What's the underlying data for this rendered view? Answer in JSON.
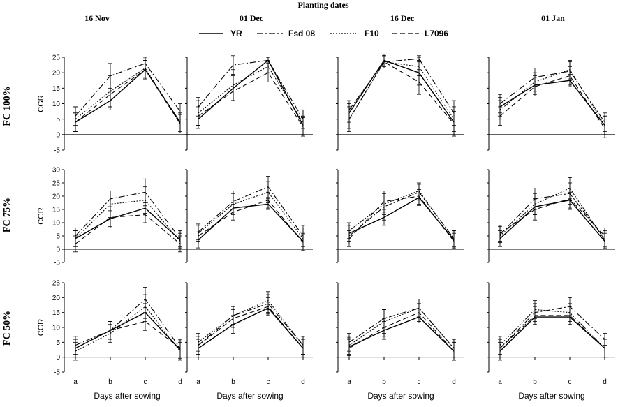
{
  "figure_title": "Planting dates",
  "legend_entries": [
    "YR",
    "Fsd 08",
    "F10",
    "L7096"
  ],
  "column_titles": [
    "16 Nov",
    "01 Dec",
    "16 Dec",
    "01 Jan"
  ],
  "row_labels": [
    "FC 100%",
    "FC 75%",
    "FC 50%"
  ],
  "ylabel": "CGR",
  "xlabel": "Days after sowing",
  "categories": [
    "a",
    "b",
    "c",
    "d"
  ],
  "chart_data": [
    {
      "type": "line",
      "row": "FC 100%",
      "column": "16 Nov",
      "ylim": [
        -5,
        25
      ],
      "yticks": [
        -5,
        0,
        5,
        10,
        15,
        20,
        25
      ],
      "categories": [
        "a",
        "b",
        "c",
        "d"
      ],
      "series": [
        {
          "name": "YR",
          "values": [
            4,
            11,
            21,
            4
          ],
          "errors": [
            3,
            3,
            3,
            3
          ]
        },
        {
          "name": "Fsd 08",
          "values": [
            6,
            19,
            23,
            7.5
          ],
          "errors": [
            3,
            4,
            2,
            2.5
          ]
        },
        {
          "name": "F10",
          "values": [
            5,
            14,
            21.5,
            3.5
          ],
          "errors": [
            4,
            5,
            3,
            3
          ]
        },
        {
          "name": "L7096",
          "values": [
            4,
            13,
            21,
            3.5
          ],
          "errors": [
            3,
            4,
            3,
            3
          ]
        }
      ]
    },
    {
      "type": "line",
      "row": "FC 100%",
      "column": "01 Dec",
      "ylim": [
        -5,
        25
      ],
      "yticks": [
        -5,
        0,
        5,
        10,
        15,
        20,
        25
      ],
      "categories": [
        "a",
        "b",
        "c",
        "d"
      ],
      "series": [
        {
          "name": "YR",
          "values": [
            5,
            15,
            24,
            3
          ],
          "errors": [
            3,
            4,
            1,
            3
          ]
        },
        {
          "name": "Fsd 08",
          "values": [
            9,
            22.5,
            24,
            5
          ],
          "errors": [
            3,
            3,
            1,
            3
          ]
        },
        {
          "name": "F10",
          "values": [
            7,
            16,
            22,
            4
          ],
          "errors": [
            4,
            5,
            2,
            4
          ]
        },
        {
          "name": "L7096",
          "values": [
            6,
            14,
            20,
            2.5
          ],
          "errors": [
            3,
            3,
            3,
            3
          ]
        }
      ]
    },
    {
      "type": "line",
      "row": "FC 100%",
      "column": "16 Dec",
      "ylim": [
        -5,
        25
      ],
      "yticks": [
        -5,
        0,
        5,
        10,
        15,
        20,
        25
      ],
      "categories": [
        "a",
        "b",
        "c",
        "d"
      ],
      "series": [
        {
          "name": "YR",
          "values": [
            7,
            24,
            20,
            4
          ],
          "errors": [
            3,
            2,
            4,
            4
          ]
        },
        {
          "name": "Fsd 08",
          "values": [
            8,
            23.5,
            24.5,
            7
          ],
          "errors": [
            3,
            2,
            1,
            4
          ]
        },
        {
          "name": "F10",
          "values": [
            5,
            23.5,
            22,
            5
          ],
          "errors": [
            4,
            2,
            3,
            4
          ]
        },
        {
          "name": "L7096",
          "values": [
            5,
            23.5,
            17,
            3.5
          ],
          "errors": [
            3,
            2,
            4,
            4
          ]
        }
      ]
    },
    {
      "type": "line",
      "row": "FC 100%",
      "column": "01 Jan",
      "ylim": [
        -5,
        25
      ],
      "yticks": [
        -5,
        0,
        5,
        10,
        15,
        20,
        25
      ],
      "categories": [
        "a",
        "b",
        "c",
        "d"
      ],
      "series": [
        {
          "name": "YR",
          "values": [
            9,
            16,
            17.5,
            3
          ],
          "errors": [
            3,
            3,
            2,
            3
          ]
        },
        {
          "name": "Fsd 08",
          "values": [
            10,
            18.5,
            20.5,
            4
          ],
          "errors": [
            3,
            3,
            3,
            3
          ]
        },
        {
          "name": "F10",
          "values": [
            8,
            17,
            21,
            3
          ],
          "errors": [
            3,
            3,
            3,
            3
          ]
        },
        {
          "name": "L7096",
          "values": [
            6,
            15.5,
            19,
            2
          ],
          "errors": [
            3,
            3,
            3,
            3
          ]
        }
      ]
    },
    {
      "type": "line",
      "row": "FC 75%",
      "column": "16 Nov",
      "ylim": [
        -5,
        30
      ],
      "yticks": [
        -5,
        0,
        5,
        10,
        15,
        20,
        25,
        30
      ],
      "categories": [
        "a",
        "b",
        "c",
        "d"
      ],
      "series": [
        {
          "name": "YR",
          "values": [
            4,
            11.5,
            15.5,
            3.5
          ],
          "errors": [
            3,
            3,
            2,
            3
          ]
        },
        {
          "name": "Fsd 08",
          "values": [
            5,
            19,
            21.5,
            4
          ],
          "errors": [
            3,
            3,
            5,
            3
          ]
        },
        {
          "name": "F10",
          "values": [
            4,
            17,
            18.5,
            3
          ],
          "errors": [
            3,
            5,
            5,
            3
          ]
        },
        {
          "name": "L7096",
          "values": [
            2,
            12,
            13,
            2
          ],
          "errors": [
            3,
            4,
            3,
            3
          ]
        }
      ]
    },
    {
      "type": "line",
      "row": "FC 75%",
      "column": "01 Dec",
      "ylim": [
        -5,
        30
      ],
      "yticks": [
        -5,
        0,
        5,
        10,
        15,
        20,
        25,
        30
      ],
      "categories": [
        "a",
        "b",
        "c",
        "d"
      ],
      "series": [
        {
          "name": "YR",
          "values": [
            3.5,
            15.5,
            17,
            3
          ],
          "errors": [
            3,
            3,
            2,
            3
          ]
        },
        {
          "name": "Fsd 08",
          "values": [
            6.5,
            18,
            23.5,
            5
          ],
          "errors": [
            3,
            4,
            4,
            4
          ]
        },
        {
          "name": "F10",
          "values": [
            6,
            17,
            21.5,
            4
          ],
          "errors": [
            3,
            4,
            4,
            4
          ]
        },
        {
          "name": "L7096",
          "values": [
            5,
            14,
            18.5,
            2.5
          ],
          "errors": [
            3,
            3,
            3,
            3
          ]
        }
      ]
    },
    {
      "type": "line",
      "row": "FC 75%",
      "column": "16 Dec",
      "ylim": [
        -5,
        30
      ],
      "yticks": [
        -5,
        0,
        5,
        10,
        15,
        20,
        25,
        30
      ],
      "categories": [
        "a",
        "b",
        "c",
        "d"
      ],
      "series": [
        {
          "name": "YR",
          "values": [
            6,
            12,
            19.5,
            3.5
          ],
          "errors": [
            3,
            3,
            3,
            3
          ]
        },
        {
          "name": "Fsd 08",
          "values": [
            5,
            16,
            21.5,
            4
          ],
          "errors": [
            3,
            5,
            3,
            3
          ]
        },
        {
          "name": "F10",
          "values": [
            7,
            17,
            22,
            4
          ],
          "errors": [
            3,
            4,
            3,
            3
          ]
        },
        {
          "name": "L7096",
          "values": [
            4,
            18,
            20,
            3
          ],
          "errors": [
            3,
            4,
            3,
            3
          ]
        }
      ]
    },
    {
      "type": "line",
      "row": "FC 75%",
      "column": "01 Jan",
      "ylim": [
        -5,
        30
      ],
      "yticks": [
        -5,
        0,
        5,
        10,
        15,
        20,
        25,
        30
      ],
      "categories": [
        "a",
        "b",
        "c",
        "d"
      ],
      "series": [
        {
          "name": "YR",
          "values": [
            4,
            16,
            18.5,
            3
          ],
          "errors": [
            3,
            3,
            3,
            3
          ]
        },
        {
          "name": "Fsd 08",
          "values": [
            5.5,
            19,
            21,
            4
          ],
          "errors": [
            3,
            4,
            4,
            3
          ]
        },
        {
          "name": "F10",
          "values": [
            5,
            17,
            23,
            3.5
          ],
          "errors": [
            3,
            4,
            4,
            3
          ]
        },
        {
          "name": "L7096",
          "values": [
            6,
            15,
            19,
            5
          ],
          "errors": [
            3,
            4,
            4,
            3
          ]
        }
      ]
    },
    {
      "type": "line",
      "row": "FC 50%",
      "column": "16 Nov",
      "ylim": [
        -5,
        25
      ],
      "yticks": [
        -5,
        0,
        5,
        10,
        15,
        20,
        25
      ],
      "categories": [
        "a",
        "b",
        "c",
        "d"
      ],
      "series": [
        {
          "name": "YR",
          "values": [
            3,
            9,
            15,
            2.5
          ],
          "errors": [
            3,
            3,
            3,
            3
          ]
        },
        {
          "name": "Fsd 08",
          "values": [
            4,
            9,
            19.5,
            3
          ],
          "errors": [
            3,
            3,
            4,
            3
          ]
        },
        {
          "name": "F10",
          "values": [
            2,
            8,
            17,
            2
          ],
          "errors": [
            3,
            3,
            4,
            3
          ]
        },
        {
          "name": "L7096",
          "values": [
            3,
            9,
            12,
            3
          ],
          "errors": [
            3,
            3,
            3,
            3
          ]
        }
      ]
    },
    {
      "type": "line",
      "row": "FC 50%",
      "column": "01 Dec",
      "ylim": [
        -5,
        25
      ],
      "yticks": [
        -5,
        0,
        5,
        10,
        15,
        20,
        25
      ],
      "categories": [
        "a",
        "b",
        "c",
        "d"
      ],
      "series": [
        {
          "name": "YR",
          "values": [
            3,
            11,
            16.5,
            3
          ],
          "errors": [
            3,
            3,
            2,
            3
          ]
        },
        {
          "name": "Fsd 08",
          "values": [
            4,
            14,
            18,
            4
          ],
          "errors": [
            3,
            3,
            3,
            3
          ]
        },
        {
          "name": "F10",
          "values": [
            5,
            14,
            19,
            4
          ],
          "errors": [
            3,
            3,
            3,
            3
          ]
        },
        {
          "name": "L7096",
          "values": [
            4,
            13,
            17,
            3
          ],
          "errors": [
            3,
            3,
            3,
            3
          ]
        }
      ]
    },
    {
      "type": "line",
      "row": "FC 50%",
      "column": "16 Dec",
      "ylim": [
        -5,
        25
      ],
      "yticks": [
        -5,
        0,
        5,
        10,
        15,
        20,
        25
      ],
      "categories": [
        "a",
        "b",
        "c",
        "d"
      ],
      "series": [
        {
          "name": "YR",
          "values": [
            3.5,
            9,
            13.5,
            2
          ],
          "errors": [
            3,
            3,
            2,
            3
          ]
        },
        {
          "name": "Fsd 08",
          "values": [
            5,
            13,
            16.5,
            3
          ],
          "errors": [
            3,
            3,
            3,
            3
          ]
        },
        {
          "name": "F10",
          "values": [
            4,
            12,
            16.5,
            3
          ],
          "errors": [
            3,
            4,
            3,
            3
          ]
        },
        {
          "name": "L7096",
          "values": [
            3,
            10,
            15,
            2
          ],
          "errors": [
            3,
            3,
            3,
            3
          ]
        }
      ]
    },
    {
      "type": "line",
      "row": "FC 50%",
      "column": "01 Jan",
      "ylim": [
        -5,
        25
      ],
      "yticks": [
        -5,
        0,
        5,
        10,
        15,
        20,
        25
      ],
      "categories": [
        "a",
        "b",
        "c",
        "d"
      ],
      "series": [
        {
          "name": "YR",
          "values": [
            2,
            13.5,
            13.5,
            3
          ],
          "errors": [
            3,
            2,
            2,
            3
          ]
        },
        {
          "name": "Fsd 08",
          "values": [
            3,
            15,
            17,
            6
          ],
          "errors": [
            3,
            3,
            3,
            2
          ]
        },
        {
          "name": "F10",
          "values": [
            4,
            16,
            15,
            3
          ],
          "errors": [
            3,
            3,
            3,
            3
          ]
        },
        {
          "name": "L7096",
          "values": [
            3,
            14,
            14,
            3
          ],
          "errors": [
            3,
            3,
            3,
            3
          ]
        }
      ]
    }
  ]
}
